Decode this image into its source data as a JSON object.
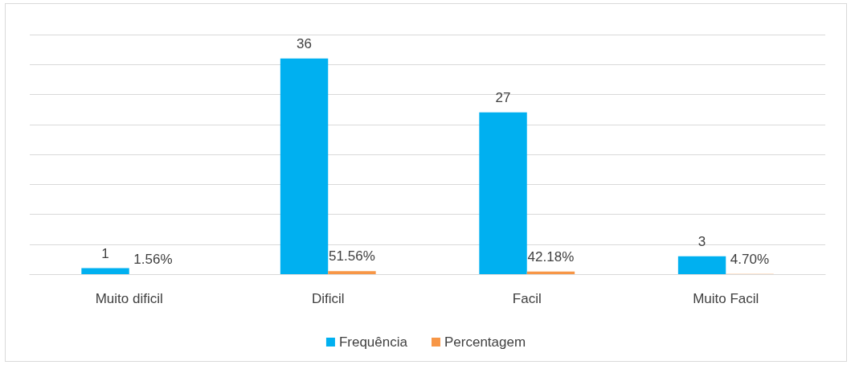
{
  "chart_data": {
    "type": "bar",
    "categories": [
      "Muito dificil",
      "Dificil",
      "Facil",
      "Muito Facil"
    ],
    "series": [
      {
        "name": "Frequência",
        "color": "#00b0f0",
        "values": [
          1,
          36,
          27,
          3
        ],
        "value_labels": [
          "1",
          "36",
          "27",
          "3"
        ]
      },
      {
        "name": "Percentagem",
        "color": "#f79646",
        "values": [
          0.0156,
          0.5156,
          0.4218,
          0.047
        ],
        "value_labels": [
          "1.56%",
          "51.56%",
          "42.18%",
          "4.70%"
        ]
      }
    ],
    "ylim": [
      0,
      40
    ],
    "yticks": [
      {
        "value": 0,
        "label": null
      },
      {
        "value": 5,
        "label": null
      },
      {
        "value": 10,
        "label": null
      },
      {
        "value": 15,
        "label": null
      },
      {
        "value": 20,
        "label": null
      },
      {
        "value": 25,
        "label": null
      },
      {
        "value": 30,
        "label": null
      },
      {
        "value": 35,
        "label": null
      },
      {
        "value": 40,
        "label": null
      }
    ],
    "tick_labels": "x",
    "grid": "y",
    "legend": "bottom"
  }
}
